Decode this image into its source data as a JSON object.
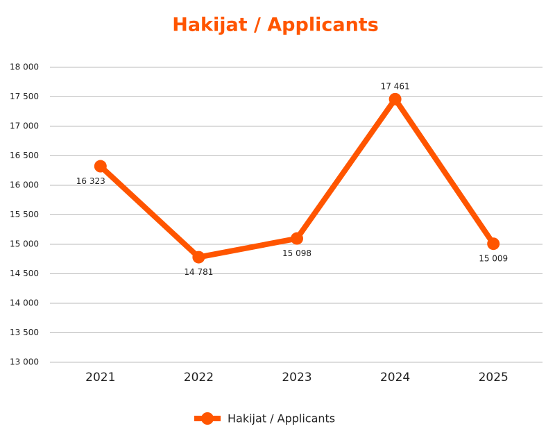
{
  "chart_data": {
    "type": "line",
    "title": "Hakijat / Applicants",
    "categories": [
      "2021",
      "2022",
      "2023",
      "2024",
      "2025"
    ],
    "series": [
      {
        "name": "Hakijat / Applicants",
        "color": "#ff5500",
        "values": [
          16323,
          14781,
          15098,
          17461,
          15009
        ],
        "value_labels": [
          "16 323",
          "14 781",
          "15 098",
          "17 461",
          "15 009"
        ]
      }
    ],
    "ylim": [
      13000,
      18000
    ],
    "yticks": [
      {
        "value": 13000,
        "label": "13 000"
      },
      {
        "value": 13500,
        "label": "13 500"
      },
      {
        "value": 14000,
        "label": "14 000"
      },
      {
        "value": 14500,
        "label": "14 500"
      },
      {
        "value": 15000,
        "label": "15 000"
      },
      {
        "value": 15500,
        "label": "15 500"
      },
      {
        "value": 16000,
        "label": "16 000"
      },
      {
        "value": 16500,
        "label": "16 500"
      },
      {
        "value": 17000,
        "label": "17 000"
      },
      {
        "value": 17500,
        "label": "17 500"
      },
      {
        "value": 18000,
        "label": "18 000"
      }
    ],
    "grid": true,
    "legend": "bottom"
  }
}
